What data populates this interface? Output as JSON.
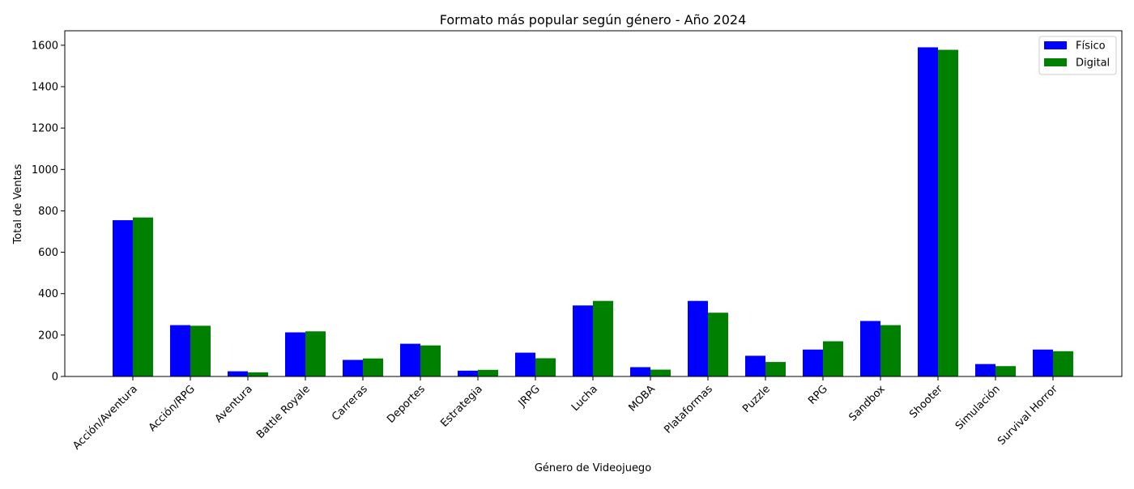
{
  "chart_data": {
    "type": "bar",
    "title": "Formato más popular según género - Año 2024",
    "xlabel": "Género de Videojuego",
    "ylabel": "Total de Ventas",
    "ylim": [
      0,
      1670
    ],
    "yticks": [
      0,
      200,
      400,
      600,
      800,
      1000,
      1200,
      1400,
      1600
    ],
    "grid": false,
    "legend_position": "top-right",
    "categories": [
      "Acción/Aventura",
      "Acción/RPG",
      "Aventura",
      "Battle Royale",
      "Carreras",
      "Deportes",
      "Estrategia",
      "JRPG",
      "Lucha",
      "MOBA",
      "Plataformas",
      "Puzzle",
      "RPG",
      "Sandbox",
      "Shooter",
      "Simulación",
      "Survival Horror"
    ],
    "series": [
      {
        "name": "Físico",
        "color": "#0000ff",
        "values": [
          755,
          248,
          25,
          213,
          80,
          158,
          28,
          115,
          343,
          45,
          365,
          100,
          130,
          268,
          1590,
          60,
          130
        ]
      },
      {
        "name": "Digital",
        "color": "#008000",
        "values": [
          768,
          245,
          20,
          218,
          87,
          150,
          32,
          88,
          365,
          33,
          308,
          70,
          170,
          248,
          1578,
          50,
          122
        ]
      }
    ]
  }
}
